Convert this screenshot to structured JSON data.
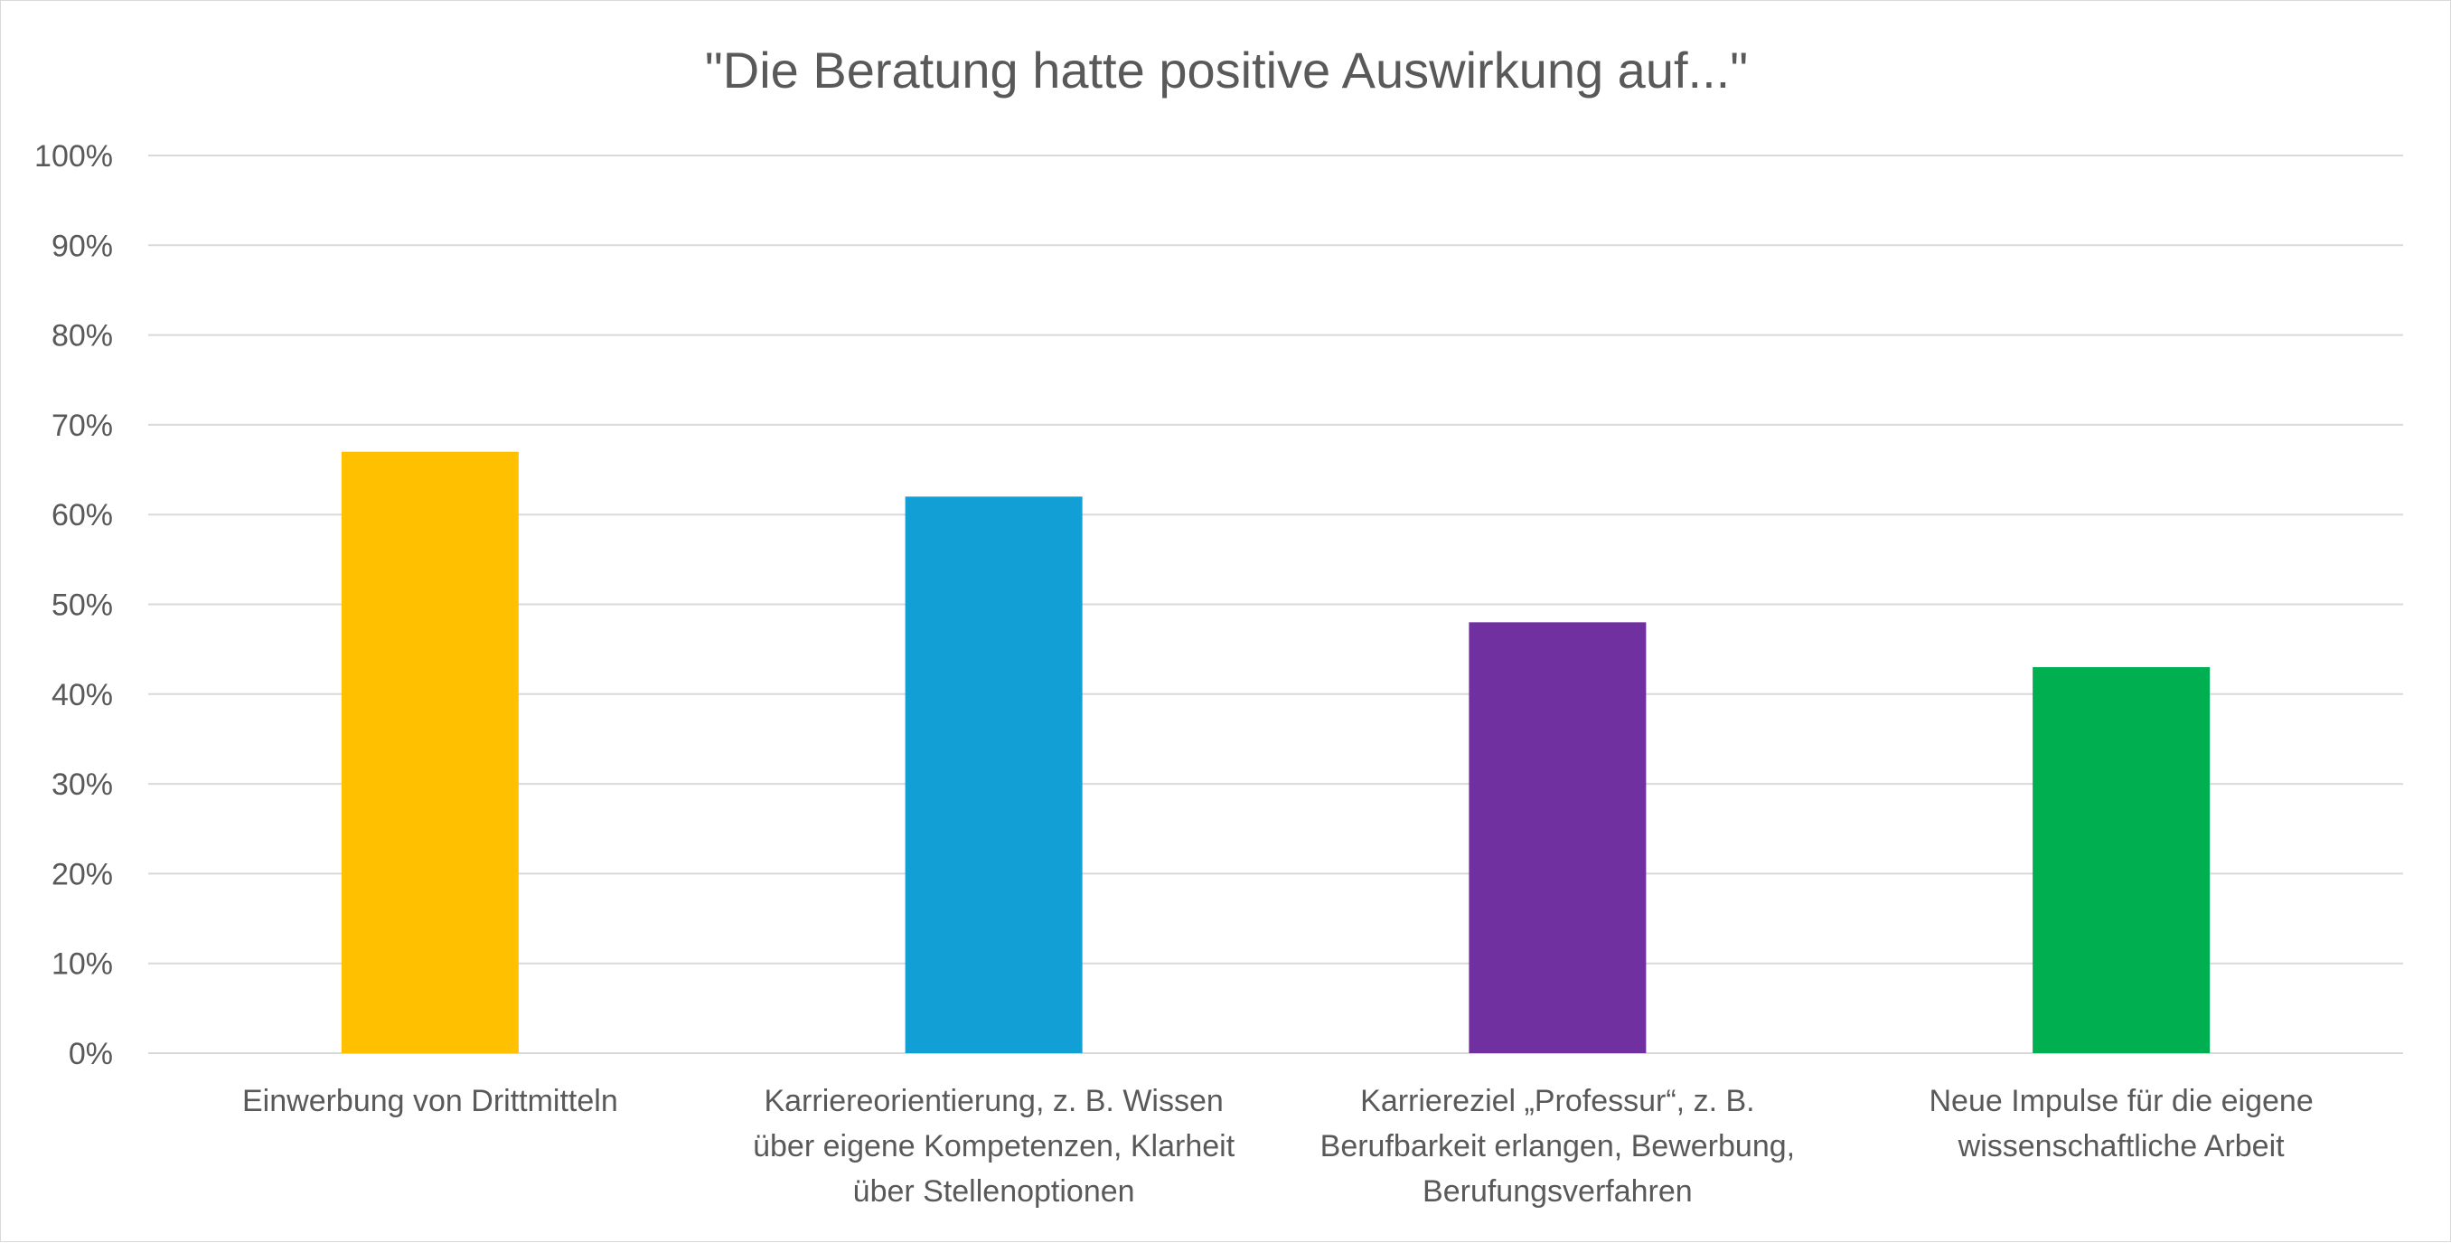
{
  "chart_data": {
    "type": "bar",
    "title": "\"Die Beratung hatte positive Auswirkung auf...\"",
    "xlabel": "",
    "ylabel": "",
    "ylim": [
      0,
      1
    ],
    "y_ticks": [
      0,
      0.1,
      0.2,
      0.3,
      0.4,
      0.5,
      0.6,
      0.7,
      0.8,
      0.9,
      1.0
    ],
    "y_tick_labels": [
      "0%",
      "10%",
      "20%",
      "30%",
      "40%",
      "50%",
      "60%",
      "70%",
      "80%",
      "90%",
      "100%"
    ],
    "grid": true,
    "legend": "none",
    "categories": [
      [
        "Einwerbung von Drittmitteln"
      ],
      [
        "Karriereorientierung, z. B. Wissen",
        "über eigene Kompetenzen, Klarheit",
        "über Stellenoptionen"
      ],
      [
        "Karriereziel „Professur“, z. B.",
        "Berufbarkeit erlangen, Bewerbung,",
        "Berufungsverfahren"
      ],
      [
        "Neue Impulse für die eigene",
        "wissenschaftliche Arbeit"
      ]
    ],
    "values": [
      0.67,
      0.62,
      0.48,
      0.43
    ],
    "colors": [
      "#FFC000",
      "#119FD6",
      "#7030A0",
      "#00B050"
    ],
    "gridline_color": "#d9d9d9",
    "text_color": "#595959"
  }
}
